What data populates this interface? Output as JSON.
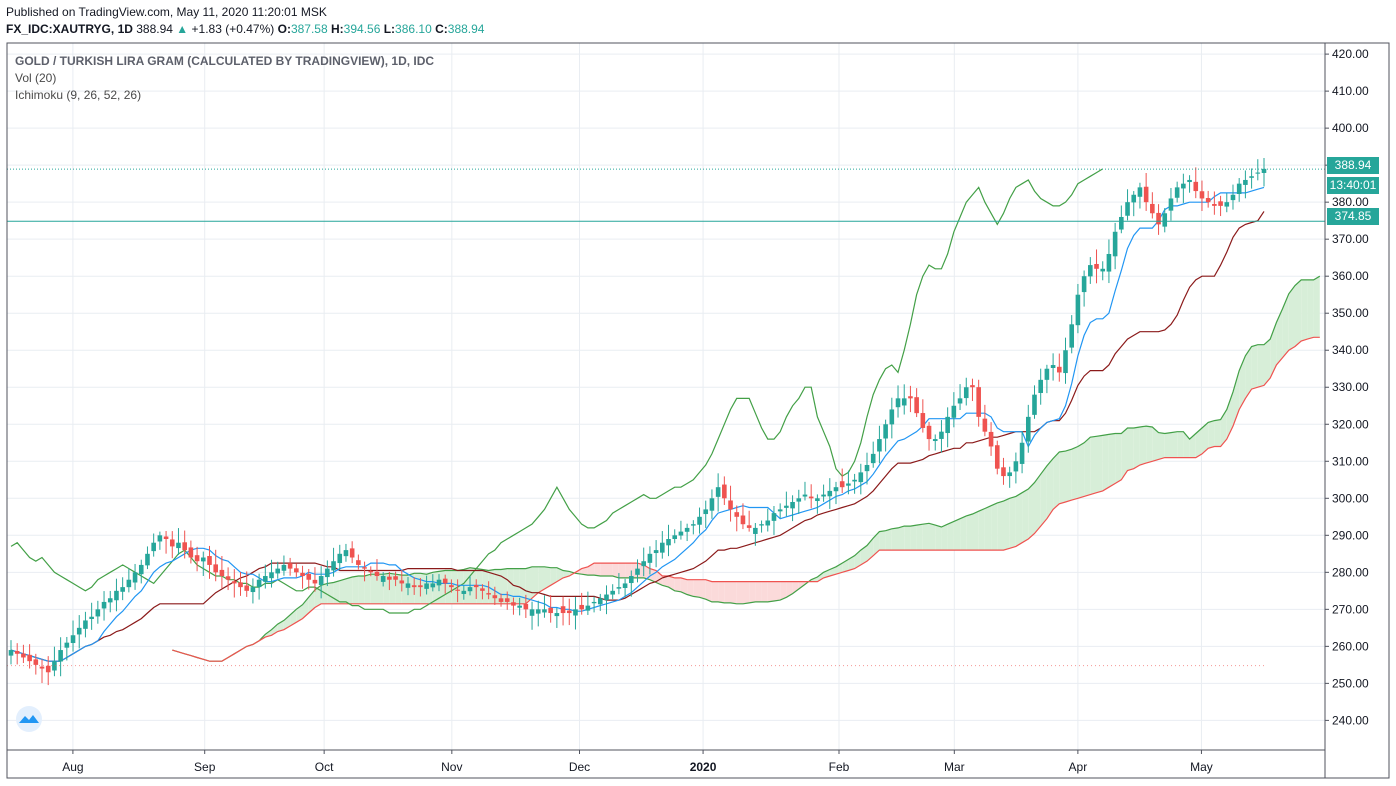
{
  "header": {
    "published": "Published on TradingView.com, May 11, 2020 11:20:01 MSK",
    "symbol": "FX_IDC:XAUTRYG, 1D",
    "last": "388.94",
    "change": "+1.83 (+0.47%)",
    "o_label": "O:",
    "o": "387.58",
    "h_label": "H:",
    "h": "394.56",
    "l_label": "L:",
    "l": "386.10",
    "c_label": "C:",
    "c": "388.94"
  },
  "legend": {
    "title": "GOLD / TURKISH LIRA GRAM (CALCULATED BY TRADINGVIEW), 1D, IDC",
    "vol": "Vol (20)",
    "ichimoku": "Ichimoku (9, 26, 52, 26)"
  },
  "tags": {
    "last_price": "388.94",
    "countdown": "13:40:01",
    "hline_price": "374.85"
  },
  "colors": {
    "up": "#26a69a",
    "down": "#ef5350",
    "tenkan": "#2196f3",
    "kijun": "#8b1a1a",
    "chikou": "#43a047",
    "span_a": "#43a047",
    "span_b": "#ef5350",
    "cloud_up": "#d7eed8",
    "cloud_down": "#fbdada",
    "hline": "#26a69a",
    "grid": "#e9edf2"
  },
  "chart_data": {
    "type": "candlestick",
    "title": "",
    "ylim": [
      232,
      423
    ],
    "y_ticks": [
      240,
      250,
      260,
      270,
      280,
      290,
      300,
      310,
      320,
      330,
      340,
      350,
      360,
      370,
      380,
      390,
      400,
      410,
      420
    ],
    "y_tick_labels": [
      "240.00",
      "250.00",
      "260.00",
      "270.00",
      "280.00",
      "290.00",
      "300.00",
      "310.00",
      "320.00",
      "330.00",
      "340.00",
      "350.00",
      "360.00",
      "370.00",
      "380.00",
      "390.00",
      "400.00",
      "410.00",
      "420.00"
    ],
    "x_labels": [
      {
        "label": "Aug",
        "date": "2019-08-01"
      },
      {
        "label": "Sep",
        "date": "2019-09-02"
      },
      {
        "label": "Oct",
        "date": "2019-10-01"
      },
      {
        "label": "Nov",
        "date": "2019-11-01"
      },
      {
        "label": "Dec",
        "date": "2019-12-02"
      },
      {
        "label": "2020",
        "date": "2020-01-01"
      },
      {
        "label": "Feb",
        "date": "2020-02-03"
      },
      {
        "label": "Mar",
        "date": "2020-03-02"
      },
      {
        "label": "Apr",
        "date": "2020-04-01"
      },
      {
        "label": "May",
        "date": "2020-05-01"
      }
    ],
    "horizontal_line": 374.85,
    "last_price": 388.94,
    "series_closes": [
      259,
      258,
      257,
      256,
      255,
      254,
      253,
      256,
      259,
      261,
      263,
      265,
      267,
      268,
      270,
      272,
      273,
      275,
      276,
      278,
      280,
      282,
      285,
      288,
      290,
      289,
      287,
      288,
      286,
      284,
      283,
      284,
      282,
      280,
      279,
      278,
      277,
      276,
      275,
      276,
      278,
      279,
      280,
      281,
      282,
      281,
      280,
      279,
      278,
      277,
      279,
      281,
      283,
      285,
      286,
      284,
      282,
      281,
      280,
      279,
      279,
      278,
      278,
      277,
      277,
      276,
      276,
      277,
      277,
      278,
      277,
      276,
      275,
      275,
      276,
      276,
      275,
      274,
      273,
      272,
      272,
      271,
      271,
      270,
      270,
      270,
      270,
      269,
      269,
      269,
      269,
      270,
      270,
      271,
      272,
      273,
      274,
      275,
      276,
      277,
      279,
      281,
      283,
      285,
      286,
      288,
      289,
      290,
      291,
      292,
      293,
      295,
      297,
      300,
      303,
      300,
      297,
      295,
      293,
      292,
      292,
      293,
      294,
      296,
      297,
      298,
      299,
      300,
      301,
      300,
      300,
      301,
      302,
      303,
      303,
      304,
      305,
      307,
      309,
      312,
      316,
      320,
      324,
      327,
      327,
      327,
      323,
      319,
      316,
      316,
      318,
      322,
      325,
      327,
      330,
      330,
      322,
      318,
      314,
      308,
      306,
      307,
      310,
      315,
      322,
      328,
      332,
      335,
      336,
      334,
      340,
      347,
      355,
      360,
      363,
      362,
      362,
      366,
      372,
      376,
      380,
      382,
      384,
      380,
      377,
      374,
      377,
      381,
      384,
      385,
      386,
      383,
      381,
      380,
      379,
      379,
      380,
      382,
      385,
      386,
      387,
      388,
      389
    ]
  }
}
